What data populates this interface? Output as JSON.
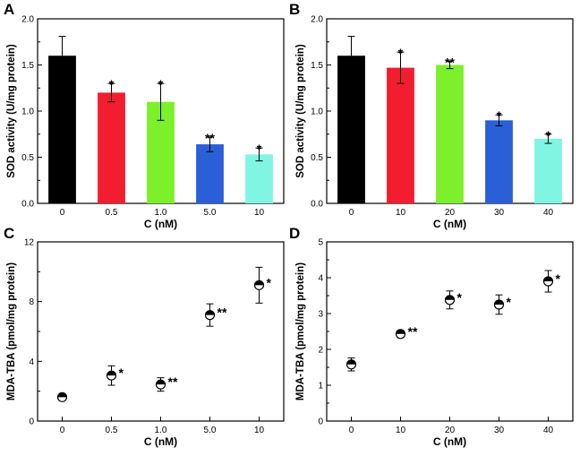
{
  "chart_data": [
    {
      "panel": "A",
      "type": "bar",
      "categories": [
        "0",
        "0.5",
        "1.0",
        "5.0",
        "10"
      ],
      "values": [
        1.6,
        1.2,
        1.1,
        0.64,
        0.53
      ],
      "errors": [
        0.21,
        0.1,
        0.2,
        0.08,
        0.07
      ],
      "colors": [
        "#000000",
        "#f21d2f",
        "#7cf02a",
        "#2b5fd8",
        "#7ff5e2"
      ],
      "significance": [
        "",
        "*",
        "*",
        "**",
        "*"
      ],
      "xlabel": "C (nM)",
      "ylabel": "SOD activity (U/mg protein)",
      "ylim": [
        0,
        2.0
      ],
      "yticks": [
        "0.0",
        "0.5",
        "1.0",
        "1.5",
        "2.0"
      ]
    },
    {
      "panel": "B",
      "type": "bar",
      "categories": [
        "0",
        "10",
        "20",
        "30",
        "40"
      ],
      "values": [
        1.6,
        1.47,
        1.5,
        0.9,
        0.7
      ],
      "errors": [
        0.21,
        0.17,
        0.04,
        0.06,
        0.05
      ],
      "colors": [
        "#000000",
        "#f21d2f",
        "#7cf02a",
        "#2b5fd8",
        "#7ff5e2"
      ],
      "significance": [
        "",
        "*",
        "**",
        "*",
        "*"
      ],
      "xlabel": "C (nM)",
      "ylabel": "SOD activity (U/mg protein)",
      "ylim": [
        0,
        2.0
      ],
      "yticks": [
        "0.0",
        "0.5",
        "1.0",
        "1.5",
        "2.0"
      ]
    },
    {
      "panel": "C",
      "type": "scatter",
      "categories": [
        "0",
        "0.5",
        "1.0",
        "5.0",
        "10"
      ],
      "values": [
        1.6,
        3.05,
        2.45,
        7.1,
        9.1
      ],
      "errors": [
        0.2,
        0.65,
        0.45,
        0.75,
        1.2
      ],
      "significance": [
        "",
        "*",
        "**",
        "**",
        "*"
      ],
      "xlabel": "C (nM)",
      "ylabel": "MDA-TBA (pmol/mg protein)",
      "ylim": [
        0,
        12
      ],
      "yticks": [
        "0",
        "4",
        "8",
        "12"
      ]
    },
    {
      "panel": "D",
      "type": "scatter",
      "categories": [
        "0",
        "10",
        "20",
        "30",
        "40"
      ],
      "values": [
        1.58,
        2.43,
        3.38,
        3.25,
        3.9
      ],
      "errors": [
        0.18,
        0.1,
        0.25,
        0.27,
        0.3
      ],
      "significance": [
        "",
        "**",
        "*",
        "*",
        "*"
      ],
      "xlabel": "C (nM)",
      "ylabel": "MDA-TBA (pmol/mg protein)",
      "ylim": [
        0,
        5
      ],
      "yticks": [
        "0",
        "1",
        "2",
        "3",
        "4",
        "5"
      ]
    }
  ]
}
